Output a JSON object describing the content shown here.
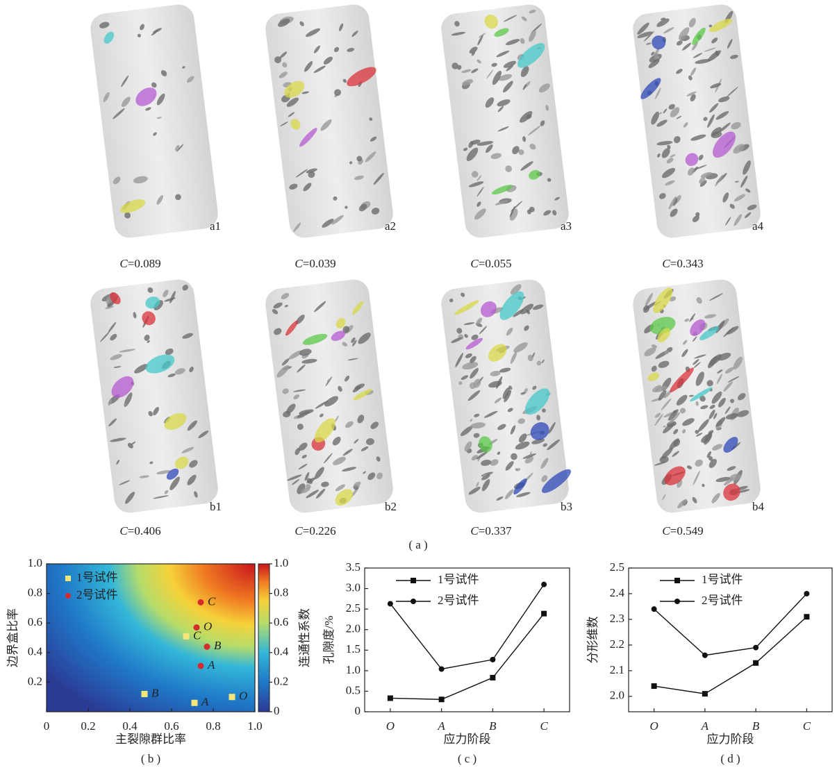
{
  "panel_a": {
    "caption": "( a )",
    "symbol": "C",
    "items": [
      {
        "label": "a1",
        "value_label": "=0.089"
      },
      {
        "label": "a2",
        "value_label": "=0.039"
      },
      {
        "label": "a3",
        "value_label": "=0.055"
      },
      {
        "label": "a4",
        "value_label": "=0.343"
      },
      {
        "label": "b1",
        "value_label": "=0.406"
      },
      {
        "label": "b2",
        "value_label": "=0.226"
      },
      {
        "label": "b3",
        "value_label": "=0.337"
      },
      {
        "label": "b4",
        "value_label": "=0.549"
      }
    ]
  },
  "chart_data": [
    {
      "type": "scatter",
      "caption": "( b )",
      "x_label": "主裂隙群比率",
      "y_label": "边界盒比率",
      "colorbar_label": "连通性系数",
      "xlim": [
        0,
        1
      ],
      "xticks": [
        0,
        0.2,
        0.4,
        0.6,
        0.8,
        {
          "value": 1,
          "label": "1.0"
        }
      ],
      "ylim": [
        0,
        1
      ],
      "yticks": [
        0.2,
        0.4,
        0.6,
        0.8,
        {
          "value": 1,
          "label": "1.0"
        }
      ],
      "clim": [
        0,
        1
      ],
      "cticks": [
        0,
        0.2,
        0.4,
        0.6,
        0.8,
        {
          "value": 1,
          "label": "1.0"
        }
      ],
      "series": [
        {
          "name": "1号试件",
          "color": "#f3e77a",
          "marker": "square",
          "point_labels": [
            "O",
            "A",
            "B",
            "C"
          ],
          "x": [
            0.89,
            0.71,
            0.47,
            0.67
          ],
          "values": [
            0.1,
            0.06,
            0.12,
            0.51
          ]
        },
        {
          "name": "2号试件",
          "color": "#d62b2b",
          "marker": "circle",
          "point_labels": [
            "O",
            "A",
            "B",
            "C"
          ],
          "x": [
            0.72,
            0.74,
            0.77,
            0.74
          ],
          "values": [
            0.57,
            0.31,
            0.44,
            0.74
          ]
        }
      ]
    },
    {
      "type": "line",
      "caption": "( c )",
      "x_label": "应力阶段",
      "y_label": "孔隙度/%",
      "categories": [
        "O",
        "A",
        "B",
        "C"
      ],
      "ylim": [
        0,
        3.5
      ],
      "yticks": [
        0,
        0.5,
        {
          "value": 1,
          "label": "1.0"
        },
        1.5,
        {
          "value": 2,
          "label": "2.0"
        },
        2.5,
        {
          "value": 3,
          "label": "3.0"
        },
        3.5
      ],
      "series": [
        {
          "name": "1号试件",
          "color": "#111111",
          "marker": "square",
          "values": [
            0.33,
            0.3,
            0.83,
            2.39
          ]
        },
        {
          "name": "2号试件",
          "color": "#111111",
          "marker": "circle",
          "values": [
            2.63,
            1.04,
            1.27,
            3.1
          ]
        }
      ]
    },
    {
      "type": "line",
      "caption": "( d )",
      "x_label": "应力阶段",
      "y_label": "分形维数",
      "categories": [
        "O",
        "A",
        "B",
        "C"
      ],
      "ylim": [
        1.94,
        2.5
      ],
      "yticks": [
        {
          "value": 2,
          "label": "2.0"
        },
        2.1,
        2.2,
        2.3,
        2.4,
        2.5
      ],
      "series": [
        {
          "name": "1号试件",
          "color": "#111111",
          "marker": "square",
          "values": [
            2.04,
            2.01,
            2.13,
            2.31
          ]
        },
        {
          "name": "2号试件",
          "color": "#111111",
          "marker": "circle",
          "values": [
            2.34,
            2.16,
            2.19,
            2.4
          ]
        }
      ]
    }
  ]
}
